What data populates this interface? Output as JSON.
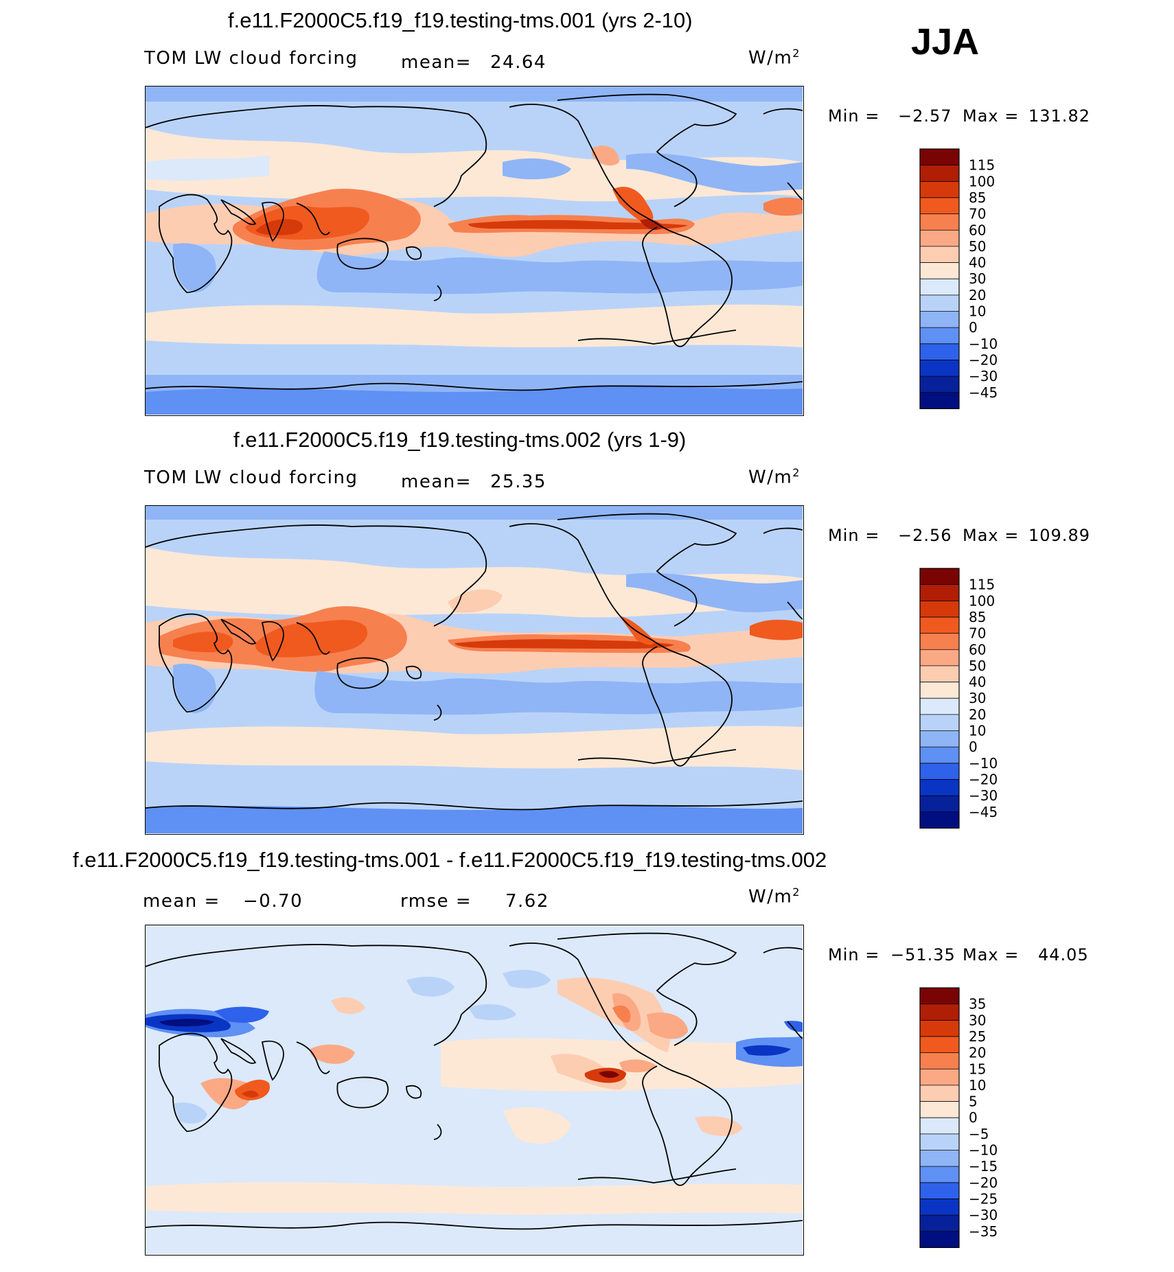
{
  "season": "JJA",
  "chart_data": [
    {
      "type": "heatmap",
      "title": "f.e11.F2000C5.f19_f19.testing-tms.001 (yrs 2-10)",
      "left_label": "TOM LW cloud forcing",
      "stat_label": "mean=",
      "stat_value": "24.64",
      "units": "W/m",
      "units_sup": "2",
      "min_label": "Min =",
      "min_value": "−2.57",
      "max_label": "Max =",
      "max_value": "131.82",
      "colorbar_levels": [
        "115",
        "100",
        "85",
        "70",
        "60",
        "50",
        "40",
        "30",
        "20",
        "10",
        "0",
        "−10",
        "−20",
        "−30",
        "−45"
      ]
    },
    {
      "type": "heatmap",
      "title": "f.e11.F2000C5.f19_f19.testing-tms.002 (yrs 1-9)",
      "left_label": "TOM LW cloud forcing",
      "stat_label": "mean=",
      "stat_value": "25.35",
      "units": "W/m",
      "units_sup": "2",
      "min_label": "Min =",
      "min_value": "−2.56",
      "max_label": "Max =",
      "max_value": "109.89",
      "colorbar_levels": [
        "115",
        "100",
        "85",
        "70",
        "60",
        "50",
        "40",
        "30",
        "20",
        "10",
        "0",
        "−10",
        "−20",
        "−30",
        "−45"
      ]
    },
    {
      "type": "heatmap",
      "title": "f.e11.F2000C5.f19_f19.testing-tms.001 - f.e11.F2000C5.f19_f19.testing-tms.002",
      "mean_label": "mean =",
      "mean_value": "−0.70",
      "rmse_label": "rmse =",
      "rmse_value": "7.62",
      "units": "W/m",
      "units_sup": "2",
      "min_label": "Min =",
      "min_value": "−51.35",
      "max_label": "Max =",
      "max_value": "44.05",
      "colorbar_levels": [
        "35",
        "30",
        "25",
        "20",
        "15",
        "10",
        "5",
        "0",
        "−5",
        "−10",
        "−15",
        "−20",
        "−25",
        "−30",
        "−35"
      ]
    }
  ],
  "colors": {
    "levels": [
      "#7a0403",
      "#b01e06",
      "#d63a0b",
      "#f05a1f",
      "#f7804f",
      "#fba985",
      "#fdcdb2",
      "#fde8d6",
      "#dbe9fb",
      "#b9d3f8",
      "#8fb5f6",
      "#5f90f3",
      "#2e62ea",
      "#0a35c4",
      "#06219a",
      "#000f80"
    ],
    "diff_levels": [
      "#7a0403",
      "#b01e06",
      "#d63a0b",
      "#f05a1f",
      "#f7804f",
      "#fba985",
      "#fdcdb2",
      "#fde8d6",
      "#dbe9fb",
      "#b9d3f8",
      "#8fb5f6",
      "#5f90f3",
      "#2e62ea",
      "#0a35c4",
      "#06219a",
      "#000f80"
    ]
  }
}
